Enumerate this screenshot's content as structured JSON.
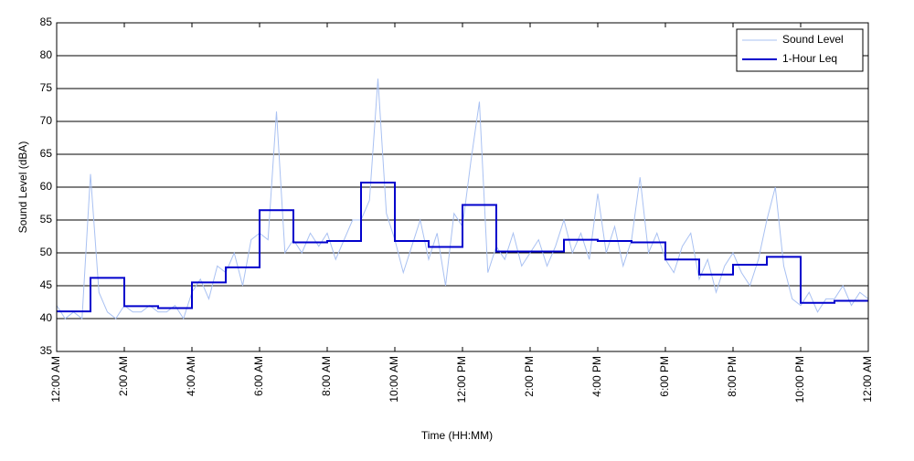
{
  "chart_data": {
    "type": "line",
    "xlabel": "Time (HH:MM)",
    "ylabel": "Sound Level (dBA)",
    "xlim": [
      0,
      24
    ],
    "ylim": [
      35,
      85
    ],
    "yticks": [
      35,
      40,
      45,
      50,
      55,
      60,
      65,
      70,
      75,
      80,
      85
    ],
    "xticks": [
      {
        "value": 0,
        "label": "12:00 AM"
      },
      {
        "value": 2,
        "label": "2:00 AM"
      },
      {
        "value": 4,
        "label": "4:00 AM"
      },
      {
        "value": 6,
        "label": "6:00 AM"
      },
      {
        "value": 8,
        "label": "8:00 AM"
      },
      {
        "value": 10,
        "label": "10:00 AM"
      },
      {
        "value": 12,
        "label": "12:00 PM"
      },
      {
        "value": 14,
        "label": "2:00 PM"
      },
      {
        "value": 16,
        "label": "4:00 PM"
      },
      {
        "value": 18,
        "label": "6:00 PM"
      },
      {
        "value": 20,
        "label": "8:00 PM"
      },
      {
        "value": 22,
        "label": "10:00 PM"
      },
      {
        "value": 24,
        "label": "12:00 AM"
      }
    ],
    "grid": true,
    "legend": "upper right",
    "series": [
      {
        "name": "Sound Level",
        "color": "#a9c1f2",
        "x": [
          0,
          0.25,
          0.5,
          0.75,
          1,
          1.25,
          1.5,
          1.75,
          2,
          2.25,
          2.5,
          2.75,
          3,
          3.25,
          3.5,
          3.75,
          4,
          4.25,
          4.5,
          4.75,
          5,
          5.25,
          5.5,
          5.75,
          6,
          6.25,
          6.5,
          6.75,
          7,
          7.25,
          7.5,
          7.75,
          8,
          8.25,
          8.5,
          8.75,
          9,
          9.25,
          9.5,
          9.75,
          10,
          10.25,
          10.5,
          10.75,
          11,
          11.25,
          11.5,
          11.75,
          12,
          12.25,
          12.5,
          12.75,
          13,
          13.25,
          13.5,
          13.75,
          14,
          14.25,
          14.5,
          14.75,
          15,
          15.25,
          15.5,
          15.75,
          16,
          16.25,
          16.5,
          16.75,
          17,
          17.25,
          17.5,
          17.75,
          18,
          18.25,
          18.5,
          18.75,
          19,
          19.25,
          19.5,
          19.75,
          20,
          20.25,
          20.5,
          20.75,
          21,
          21.25,
          21.5,
          21.75,
          22,
          22.25,
          22.5,
          22.75,
          23,
          23.25,
          23.5,
          23.75,
          24
        ],
        "values": [
          42,
          40,
          41,
          40,
          62,
          44,
          41,
          40,
          42,
          41,
          41,
          42,
          41,
          41,
          42,
          40,
          44,
          46,
          43,
          48,
          47,
          50,
          45,
          52,
          53,
          52,
          71.5,
          50,
          52,
          50,
          53,
          51,
          53,
          49,
          52,
          55,
          55,
          58,
          76.5,
          56,
          52,
          47,
          51,
          55,
          49,
          53,
          45,
          56,
          54,
          64,
          73,
          47,
          51,
          49,
          53,
          48,
          50,
          52,
          48,
          51,
          55,
          50,
          53,
          49,
          59,
          50,
          54,
          48,
          52,
          61.5,
          50,
          53,
          49,
          47,
          51,
          53,
          46,
          49,
          44,
          48,
          50,
          47,
          45,
          49,
          55,
          60,
          48,
          43,
          42,
          44,
          41,
          43,
          43,
          45,
          42,
          44,
          43
        ]
      },
      {
        "name": "1-Hour Leq",
        "color": "#0000cc",
        "drawstyle": "steps-post",
        "x": [
          0,
          1,
          2,
          3,
          4,
          5,
          6,
          7,
          8,
          9,
          10,
          11,
          12,
          13,
          14,
          15,
          16,
          17,
          18,
          19,
          20,
          21,
          22,
          23
        ],
        "values": [
          41.1,
          46.2,
          41.9,
          41.6,
          45.5,
          47.8,
          56.5,
          51.6,
          51.8,
          60.7,
          51.8,
          50.9,
          57.3,
          50.2,
          50.2,
          52.0,
          51.8,
          51.6,
          49.0,
          46.7,
          48.2,
          49.4,
          42.4,
          42.7
        ]
      }
    ]
  }
}
